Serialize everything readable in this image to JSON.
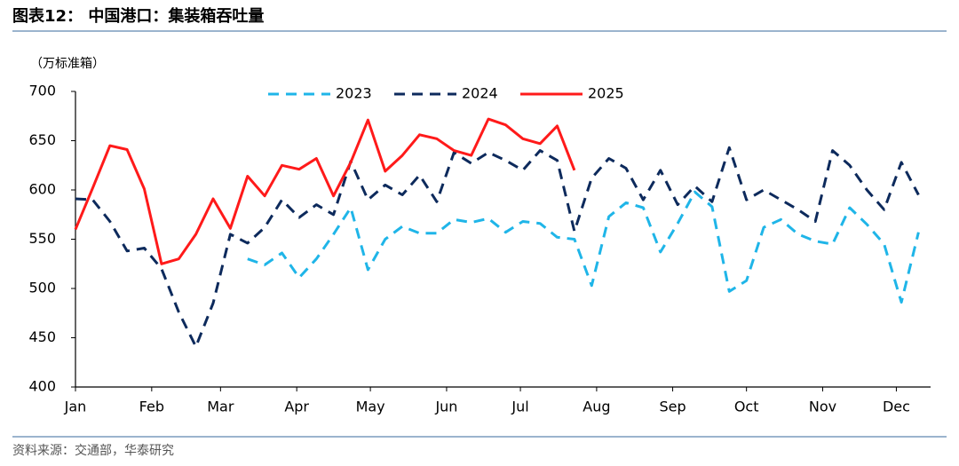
{
  "chart_data": {
    "type": "line",
    "title": "图表12：  中国港口：集装箱吞吐量",
    "y_label": "（万标准箱）",
    "source": "资料来源：交通部，华泰研究",
    "x": [
      0,
      1,
      2,
      3,
      4,
      5,
      6,
      7,
      8,
      9,
      10,
      11,
      12,
      13,
      14,
      15,
      16,
      17,
      18,
      19,
      20,
      21,
      22,
      23,
      24,
      25,
      26,
      27,
      28,
      29,
      30,
      31,
      32,
      33,
      34,
      35,
      36,
      37,
      38,
      39,
      40,
      41,
      42,
      43,
      44,
      45,
      46,
      47,
      48,
      49
    ],
    "xlim": [
      0,
      49.7
    ],
    "xticks": [
      {
        "value": 0,
        "label": "Jan"
      },
      {
        "value": 4.43,
        "label": "Feb"
      },
      {
        "value": 8.43,
        "label": "Mar"
      },
      {
        "value": 12.86,
        "label": "Apr"
      },
      {
        "value": 17.14,
        "label": "May"
      },
      {
        "value": 21.57,
        "label": "Jun"
      },
      {
        "value": 25.86,
        "label": "Jul"
      },
      {
        "value": 30.29,
        "label": "Aug"
      },
      {
        "value": 34.71,
        "label": "Sep"
      },
      {
        "value": 39,
        "label": "Oct"
      },
      {
        "value": 43.43,
        "label": "Nov"
      },
      {
        "value": 47.71,
        "label": "Dec"
      }
    ],
    "ylim": [
      400,
      700
    ],
    "yticks": [
      400,
      450,
      500,
      550,
      600,
      650,
      700
    ],
    "legend": "top",
    "series": [
      {
        "name": "2023",
        "color": "#1fb5e8",
        "line_style": "dashed",
        "values": [
          null,
          null,
          null,
          null,
          null,
          null,
          null,
          null,
          null,
          null,
          530,
          524,
          536,
          511,
          530,
          555,
          582,
          519,
          550,
          563,
          556,
          556,
          570,
          567,
          571,
          557,
          568,
          566,
          552,
          550,
          503,
          573,
          587,
          582,
          537,
          566,
          598,
          583,
          497,
          508,
          562,
          570,
          555,
          548,
          545,
          582,
          565,
          545,
          486,
          557
        ]
      },
      {
        "name": "2024",
        "color": "#0d2a5c",
        "line_style": "dashed",
        "values": [
          591,
          590,
          568,
          538,
          541,
          520,
          476,
          441,
          485,
          555,
          546,
          562,
          590,
          572,
          585,
          575,
          629,
          590,
          605,
          595,
          615,
          588,
          638,
          627,
          638,
          630,
          620,
          640,
          630,
          558,
          612,
          632,
          622,
          590,
          620,
          585,
          604,
          588,
          643,
          590,
          600,
          590,
          580,
          568,
          640,
          625,
          600,
          580,
          628,
          595
        ]
      },
      {
        "name": "2025",
        "color": "#ff1a1a",
        "line_style": "solid",
        "values": [
          560,
          602,
          645,
          641,
          601,
          525,
          530,
          555,
          591,
          561,
          614,
          594,
          625,
          621,
          632,
          594,
          628,
          671,
          619,
          635,
          656,
          652,
          640,
          635,
          672,
          666,
          652,
          647,
          665,
          620,
          null,
          null,
          null,
          null,
          null,
          null,
          null,
          null,
          null,
          null,
          null,
          null,
          null,
          null,
          null,
          null,
          null,
          null,
          null,
          null
        ]
      }
    ]
  }
}
